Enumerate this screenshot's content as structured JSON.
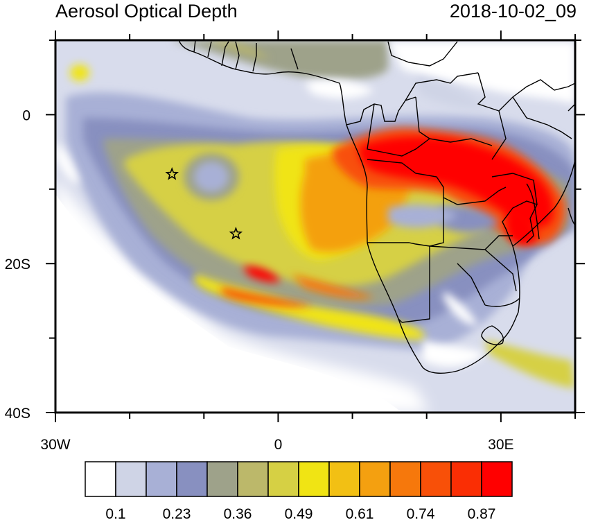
{
  "title_left": "Aerosol Optical Depth",
  "title_right": "2018-10-02_09",
  "axes": {
    "lon_range": [
      -30,
      40
    ],
    "lat_range": [
      -40,
      10
    ],
    "x_tick_labels": [
      {
        "lon": -30,
        "text": "30W"
      },
      {
        "lon": 0,
        "text": "0"
      },
      {
        "lon": 30,
        "text": "30E"
      }
    ],
    "y_tick_labels": [
      {
        "lat": 0,
        "text": "0"
      },
      {
        "lat": -20,
        "text": "20S"
      },
      {
        "lat": -40,
        "text": "40S"
      }
    ]
  },
  "colorbar": {
    "colors": [
      "#ffffff",
      "#cfd4e6",
      "#a8b0d6",
      "#8890c0",
      "#9ea28a",
      "#bcb86a",
      "#d6d044",
      "#f0e414",
      "#f2c014",
      "#f4a010",
      "#f6780c",
      "#f85008",
      "#fa2e04",
      "#ff0000"
    ],
    "labels": [
      {
        "text": "0.1",
        "after_box": 1
      },
      {
        "text": "0.23",
        "after_box": 3
      },
      {
        "text": "0.36",
        "after_box": 5
      },
      {
        "text": "0.49",
        "after_box": 7
      },
      {
        "text": "0.61",
        "after_box": 9
      },
      {
        "text": "0.74",
        "after_box": 11
      },
      {
        "text": "0.87",
        "after_box": 13
      }
    ]
  },
  "stations": [
    {
      "name": "star-1",
      "lon": -14.3,
      "lat": -8.0
    },
    {
      "name": "star-2",
      "lon": -5.7,
      "lat": -16.0
    }
  ]
}
